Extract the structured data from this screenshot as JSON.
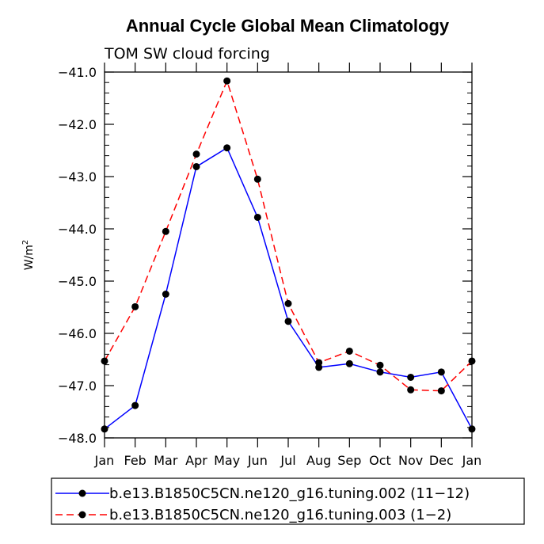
{
  "chart_data": {
    "type": "line",
    "title": "Annual Cycle Global Mean Climatology",
    "subtitle": "TOM SW cloud forcing",
    "ylabel": "W/m",
    "ylabel_superscript": "2",
    "xlabel": "",
    "categories": [
      "Jan",
      "Feb",
      "Mar",
      "Apr",
      "May",
      "Jun",
      "Jul",
      "Aug",
      "Sep",
      "Oct",
      "Nov",
      "Dec",
      "Jan"
    ],
    "ylim": [
      -48.0,
      -41.0
    ],
    "yticks": [
      -41.0,
      -42.0,
      -43.0,
      -44.0,
      -45.0,
      -46.0,
      -47.0,
      -48.0
    ],
    "ytick_labels": [
      "−41.0",
      "−42.0",
      "−43.0",
      "−44.0",
      "−45.0",
      "−46.0",
      "−47.0",
      "−48.0"
    ],
    "series": [
      {
        "name": "b.e13.B1850C5CN.ne120_g16.tuning.002 (11−12)",
        "color": "#0000ff",
        "dash": "solid",
        "values": [
          -47.83,
          -47.38,
          -45.25,
          -42.81,
          -42.45,
          -43.78,
          -45.77,
          -46.65,
          -46.58,
          -46.74,
          -46.84,
          -46.74,
          -47.83
        ]
      },
      {
        "name": "b.e13.B1850C5CN.ne120_g16.tuning.003 (1−2)",
        "color": "#ff0000",
        "dash": "dashed",
        "values": [
          -46.53,
          -45.49,
          -44.05,
          -42.57,
          -41.17,
          -43.05,
          -45.43,
          -46.56,
          -46.34,
          -46.61,
          -47.08,
          -47.1,
          -46.53
        ]
      }
    ]
  }
}
